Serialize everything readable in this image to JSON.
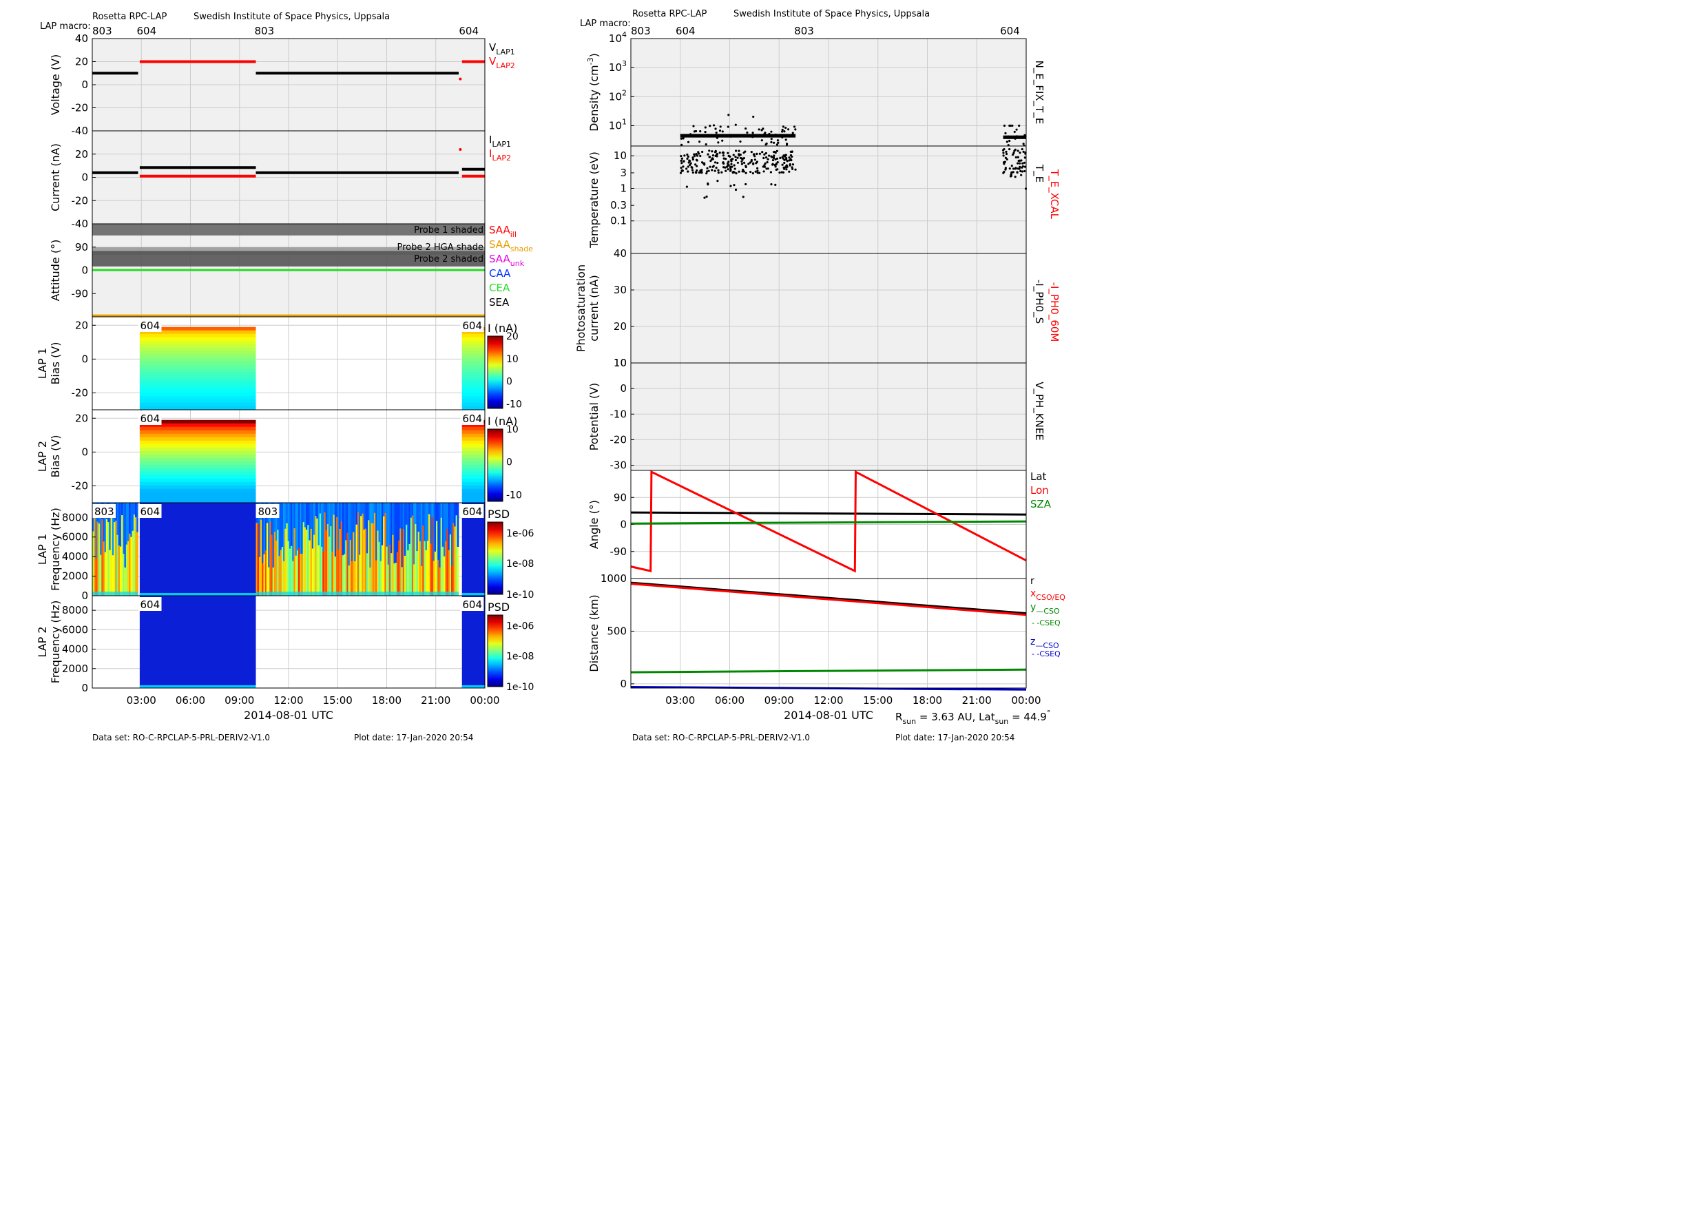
{
  "header": {
    "left_title": "Rosetta RPC-LAP",
    "left_institute": "Swedish Institute of Space Physics, Uppsala",
    "right_title": "Rosetta RPC-LAP",
    "right_institute": "Swedish Institute of Space Physics, Uppsala",
    "macro_label": "LAP macro:",
    "left_macros": [
      {
        "label": "803",
        "t": 0.0
      },
      {
        "label": "604",
        "t": 2.8
      },
      {
        "label": "803",
        "t": 10.0
      },
      {
        "label": "604",
        "t": 22.5
      }
    ],
    "right_macros": [
      {
        "label": "803",
        "t": 0.0
      },
      {
        "label": "604",
        "t": 2.8
      },
      {
        "label": "803",
        "t": 10.0
      },
      {
        "label": "604",
        "t": 22.5
      }
    ]
  },
  "footer": {
    "left_dataset": "Data set: RO-C-RPCLAP-5-PRL-DERIV2-V1.0",
    "left_plotdate": "Plot date: 17-Jan-2020 20:54",
    "right_dataset": "Data set: RO-C-RPCLAP-5-PRL-DERIV2-V1.0",
    "right_plotdate": "Plot date: 17-Jan-2020 20:54",
    "rsun_label": "R",
    "rsun_sub": "sun",
    "rsun_value": " = 3.63 AU, Lat",
    "lat_sub": "sun",
    "lat_value": " = 44.9",
    "degree": "°"
  },
  "time_axis": {
    "xlabel": "2014-08-01 UTC",
    "range_hours": [
      0,
      24
    ],
    "ticks": [
      {
        "t": 3,
        "label": "03:00"
      },
      {
        "t": 6,
        "label": "06:00"
      },
      {
        "t": 9,
        "label": "09:00"
      },
      {
        "t": 12,
        "label": "12:00"
      },
      {
        "t": 15,
        "label": "15:00"
      },
      {
        "t": 18,
        "label": "18:00"
      },
      {
        "t": 21,
        "label": "21:00"
      },
      {
        "t": 24,
        "label": "00:00"
      }
    ]
  },
  "chart_data": [
    {
      "type": "line",
      "panel": "voltage",
      "ylabel": "Voltage (V)",
      "ylim": [
        -40,
        40
      ],
      "yticks": [
        -40,
        -20,
        0,
        20,
        40
      ],
      "legend": [
        {
          "main": "V",
          "sub": "LAP1",
          "color": "#000000"
        },
        {
          "main": "V",
          "sub": "LAP2",
          "color": "#ff0000"
        }
      ],
      "series": [
        {
          "name": "V_LAP1",
          "color": "#000000",
          "segments": [
            {
              "x": [
                0,
                2.8
              ],
              "y": [
                10,
                10
              ]
            },
            {
              "x": [
                10.0,
                22.4
              ],
              "y": [
                10,
                10
              ]
            }
          ]
        },
        {
          "name": "V_LAP2",
          "color": "#ff0000",
          "segments": [
            {
              "x": [
                2.9,
                10.0
              ],
              "y": [
                20,
                20
              ]
            },
            {
              "x": [
                22.6,
                24
              ],
              "y": [
                20,
                20
              ]
            }
          ]
        }
      ]
    },
    {
      "type": "line",
      "panel": "current",
      "ylabel": "Current (nA)",
      "ylim": [
        -40,
        40
      ],
      "yticks": [
        -40,
        -20,
        0,
        20
      ],
      "legend": [
        {
          "main": "I",
          "sub": "LAP1",
          "color": "#000000"
        },
        {
          "main": "I",
          "sub": "LAP2",
          "color": "#ff0000"
        }
      ],
      "series": [
        {
          "name": "I_LAP1",
          "color": "#000000",
          "segments": [
            {
              "x": [
                0,
                2.8
              ],
              "y": [
                4,
                4
              ]
            },
            {
              "x": [
                2.9,
                10.0
              ],
              "y": [
                8.5,
                8.5
              ]
            },
            {
              "x": [
                10.0,
                22.4
              ],
              "y": [
                4,
                4
              ]
            },
            {
              "x": [
                22.6,
                24
              ],
              "y": [
                7,
                7
              ]
            }
          ]
        },
        {
          "name": "I_LAP2",
          "color": "#ff0000",
          "segments": [
            {
              "x": [
                2.9,
                10.0
              ],
              "y": [
                1,
                1
              ]
            },
            {
              "x": [
                22.6,
                24
              ],
              "y": [
                1,
                1
              ]
            }
          ]
        }
      ]
    },
    {
      "type": "line",
      "panel": "attitude",
      "ylabel": "Attitude (°)",
      "ylim": [
        -180,
        180
      ],
      "yticks": [
        -90,
        0,
        90
      ],
      "bands": [
        {
          "label": "Probe 1 shaded",
          "y": [
            135,
            180
          ],
          "color": "#666666"
        },
        {
          "label": "Probe 2 HGA shade",
          "y": [
            60,
            90
          ],
          "color": "#999999"
        },
        {
          "label": "Probe 2 shaded",
          "y": [
            15,
            75
          ],
          "color": "#555555"
        }
      ],
      "legend": [
        {
          "main": "SAA",
          "sub": "ill",
          "color": "#ff0000"
        },
        {
          "main": "SAA",
          "sub": "shade",
          "color": "#e6a000"
        },
        {
          "main": "SAA",
          "sub": "unk",
          "color": "#e600e6"
        },
        {
          "main": "CAA",
          "sub": "",
          "color": "#0033ff"
        },
        {
          "main": "CEA",
          "sub": "",
          "color": "#22dd22"
        },
        {
          "main": "SEA",
          "sub": "",
          "color": "#000000"
        }
      ],
      "series": [
        {
          "name": "SAA",
          "color": "#e6a000",
          "x": [
            0,
            24
          ],
          "y": [
            -175,
            -175
          ]
        },
        {
          "name": "CEA",
          "color": "#22dd22",
          "x": [
            0,
            24
          ],
          "y": [
            1,
            1
          ]
        }
      ]
    },
    {
      "type": "heatmap",
      "panel": "lap1_bias",
      "ylabel": "LAP 1 Bias (V)",
      "ylim": [
        -30,
        25
      ],
      "yticks": [
        -20,
        0,
        20
      ],
      "macro_labels": [
        {
          "label": "604",
          "t": 2.8
        },
        {
          "label": "604",
          "t": 22.5
        }
      ],
      "colorbar": {
        "title": "I (nA)",
        "range": [
          -12,
          20
        ],
        "ticks": [
          -10,
          0,
          10,
          20
        ]
      },
      "blocks": [
        {
          "x": [
            2.9,
            10.0
          ],
          "y": [
            -30,
            19
          ],
          "low": -10,
          "high": 20
        },
        {
          "x": [
            22.6,
            24
          ],
          "y": [
            -30,
            19
          ],
          "low": -10,
          "high": 20
        }
      ]
    },
    {
      "type": "heatmap",
      "panel": "lap2_bias",
      "ylabel": "LAP 2 Bias (V)",
      "ylim": [
        -30,
        25
      ],
      "yticks": [
        -20,
        0,
        20
      ],
      "macro_labels": [
        {
          "label": "604",
          "t": 2.8
        },
        {
          "label": "604",
          "t": 22.5
        }
      ],
      "colorbar": {
        "title": "I (nA)",
        "range": [
          -12,
          10
        ],
        "ticks": [
          -10,
          0,
          10
        ]
      },
      "blocks": [
        {
          "x": [
            2.9,
            10.0
          ],
          "y": [
            -30,
            19
          ],
          "low": -10,
          "high": 10
        },
        {
          "x": [
            22.6,
            24
          ],
          "y": [
            -30,
            19
          ],
          "low": -10,
          "high": 10
        }
      ]
    },
    {
      "type": "heatmap",
      "panel": "lap1_psd",
      "ylabel": "LAP 1 Frequency (Hz)",
      "ylim": [
        0,
        9500
      ],
      "yticks": [
        0,
        2000,
        4000,
        6000,
        8000
      ],
      "macro_labels": [
        {
          "label": "803",
          "t": 0.0
        },
        {
          "label": "604",
          "t": 2.8
        },
        {
          "label": "803",
          "t": 10.0
        },
        {
          "label": "604",
          "t": 22.5
        }
      ],
      "colorbar": {
        "title": "PSD",
        "log_range": [
          -10,
          -5
        ],
        "ticks": [
          "1e-06",
          "1e-08",
          "1e-10"
        ]
      },
      "blocks": [
        {
          "x": [
            0,
            2.8
          ],
          "kind": "noisy"
        },
        {
          "x": [
            2.9,
            10.0
          ],
          "kind": "quiet"
        },
        {
          "x": [
            10.0,
            22.4
          ],
          "kind": "noisy"
        },
        {
          "x": [
            22.6,
            24
          ],
          "kind": "quiet"
        }
      ]
    },
    {
      "type": "heatmap",
      "panel": "lap2_psd",
      "ylabel": "LAP 2 Frequency (Hz)",
      "ylim": [
        0,
        9500
      ],
      "yticks": [
        0,
        2000,
        4000,
        6000,
        8000
      ],
      "macro_labels": [
        {
          "label": "604",
          "t": 2.8
        },
        {
          "label": "604",
          "t": 22.5
        }
      ],
      "colorbar": {
        "title": "PSD",
        "log_range": [
          -10,
          -5
        ],
        "ticks": [
          "1e-06",
          "1e-08",
          "1e-10"
        ]
      },
      "blocks": [
        {
          "x": [
            2.9,
            10.0
          ],
          "kind": "quiet"
        },
        {
          "x": [
            22.6,
            24
          ],
          "kind": "quiet"
        }
      ]
    },
    {
      "type": "scatter",
      "panel": "density",
      "ylabel": "Density (cm",
      "ylabel_sup": "-3",
      "ylabel_end": ")",
      "yscale": "log",
      "ylim_log": [
        0.3,
        4
      ],
      "yticks_log": [
        1,
        2,
        3,
        4
      ],
      "right_label": "N_E_FIX_T_E",
      "clusters": [
        {
          "x": [
            3.0,
            10.0
          ],
          "center": 4.5,
          "spread": 0.35,
          "outlier_max": 40,
          "count": 70
        },
        {
          "x": [
            22.6,
            24
          ],
          "center": 4.0,
          "spread": 0.4,
          "outlier_max": 10,
          "count": 18
        }
      ]
    },
    {
      "type": "scatter",
      "panel": "temperature",
      "ylabel": "Temperature (eV)",
      "yscale": "log",
      "ylim": [
        0.01,
        20
      ],
      "yticks": [
        {
          "v": 10,
          "label": "10"
        },
        {
          "v": 3,
          "label": "3"
        },
        {
          "v": 1,
          "label": "1"
        },
        {
          "v": 0.3,
          "label": "0.3"
        },
        {
          "v": 0.1,
          "label": "0.1"
        }
      ],
      "right_labels": [
        {
          "text": "T_E",
          "color": "#000000"
        },
        {
          "text": "T_E_XCAL",
          "color": "#ff0000"
        }
      ],
      "clusters": [
        {
          "x": [
            3.0,
            10.0
          ],
          "center": 7,
          "spread": 0.35,
          "count": 90
        },
        {
          "x": [
            22.6,
            24
          ],
          "center": 7,
          "spread": 0.45,
          "count": 22
        }
      ]
    },
    {
      "type": "line",
      "panel": "photosaturation",
      "ylabel": "Photosaturation current (nA)",
      "ylabel_line1": "Photosaturation",
      "ylabel_line2": "current (nA)",
      "ylim": [
        10,
        40
      ],
      "yticks": [
        10,
        20,
        30,
        40
      ],
      "right_labels": [
        {
          "text": "-I_PH0_S",
          "color": "#000000"
        },
        {
          "text": "-I_PH0_60M",
          "color": "#ff0000"
        }
      ],
      "series": []
    },
    {
      "type": "line",
      "panel": "potential",
      "ylabel": "Potential (V)",
      "ylim": [
        -32,
        10
      ],
      "yticks": [
        -30,
        -20,
        -10,
        0,
        10
      ],
      "right_labels": [
        {
          "text": "V_PH_KNEE",
          "color": "#000000"
        }
      ],
      "series": []
    },
    {
      "type": "line",
      "panel": "angle",
      "ylabel": "Angle (°)",
      "ylim": [
        -180,
        180
      ],
      "yticks": [
        -90,
        0,
        90
      ],
      "legend": [
        {
          "main": "Lat",
          "sub": "",
          "color": "#000000"
        },
        {
          "main": "Lon",
          "sub": "",
          "color": "#ff0000"
        },
        {
          "main": "SZA",
          "sub": "",
          "color": "#008800"
        }
      ],
      "series": [
        {
          "name": "Lat",
          "color": "#000000",
          "x": [
            0,
            24
          ],
          "y": [
            40,
            33
          ]
        },
        {
          "name": "Lon",
          "color": "#ff0000",
          "x": [
            0,
            1.2,
            1.25,
            13.6,
            13.65,
            24
          ],
          "y": [
            -140,
            -155,
            175,
            -155,
            175,
            -120
          ]
        },
        {
          "name": "SZA",
          "color": "#008800",
          "x": [
            0,
            24
          ],
          "y": [
            3,
            10
          ]
        }
      ]
    },
    {
      "type": "line",
      "panel": "distance",
      "ylabel": "Distance (km)",
      "ylim": [
        -40,
        1000
      ],
      "yticks": [
        0,
        500,
        1000
      ],
      "legend": [
        {
          "main": "r",
          "sub": "",
          "color": "#000000"
        },
        {
          "main": "x",
          "sub": "CSO/EQ",
          "color": "#ff0000"
        },
        {
          "main": "y",
          "sub": "—CSO",
          "color": "#008800"
        },
        {
          "main": "",
          "sub": "- -CSEQ",
          "color": "#008800"
        },
        {
          "main": "z",
          "sub": "—CSO",
          "color": "#0000cc"
        },
        {
          "main": "",
          "sub": "- -CSEQ",
          "color": "#0000cc"
        }
      ],
      "series": [
        {
          "name": "r",
          "color": "#000000",
          "x": [
            0,
            24
          ],
          "y": [
            960,
            670
          ]
        },
        {
          "name": "x",
          "color": "#ff0000",
          "x": [
            0,
            24
          ],
          "y": [
            950,
            655
          ]
        },
        {
          "name": "y",
          "color": "#008800",
          "x": [
            0,
            24
          ],
          "y": [
            110,
            135
          ]
        },
        {
          "name": "z",
          "color": "#0000cc",
          "x": [
            0,
            24
          ],
          "y": [
            -30,
            -55
          ]
        }
      ]
    }
  ]
}
